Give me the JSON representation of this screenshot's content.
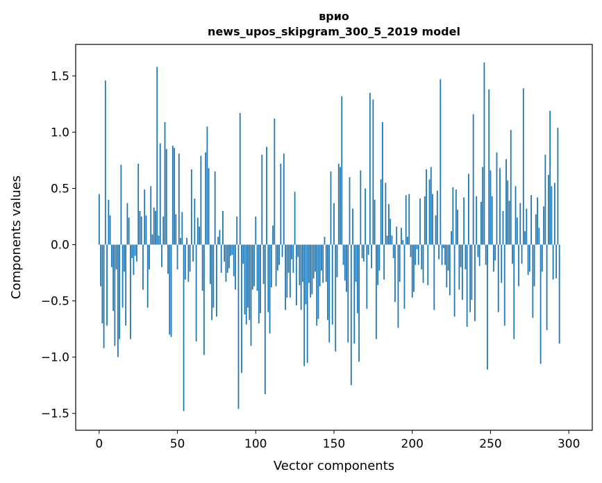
{
  "chart_data": {
    "type": "bar",
    "title": "врио",
    "subtitle": "news_upos_skipgram_300_5_2019 model",
    "xlabel": "Vector components",
    "ylabel": "Components values",
    "xlim": [
      -15,
      315
    ],
    "ylim": [
      -1.65,
      1.78
    ],
    "xticks": [
      0,
      50,
      100,
      150,
      200,
      250,
      300
    ],
    "xtick_labels": [
      "0",
      "50",
      "100",
      "150",
      "200",
      "250",
      "300"
    ],
    "yticks": [
      -1.5,
      -1.0,
      -0.5,
      0.0,
      0.5,
      1.0,
      1.5
    ],
    "ytick_labels": [
      "−1.5",
      "−1.0",
      "−0.5",
      "0.0",
      "0.5",
      "1.0",
      "1.5"
    ],
    "grid": false,
    "bar_color": "#1f77b4",
    "values": [
      0.45,
      -0.37,
      -0.7,
      -0.92,
      1.46,
      -0.72,
      0.4,
      0.26,
      -0.2,
      -0.59,
      -0.9,
      -0.22,
      -1.0,
      -0.84,
      0.71,
      -0.56,
      -0.24,
      -0.72,
      0.37,
      0.24,
      -0.84,
      -0.12,
      -0.27,
      -0.1,
      -0.15,
      0.72,
      0.3,
      0.25,
      -0.4,
      0.49,
      0.26,
      -0.56,
      -0.22,
      0.52,
      0.09,
      0.33,
      0.3,
      1.58,
      0.08,
      0.9,
      -0.2,
      0.25,
      1.09,
      0.85,
      -0.26,
      -0.8,
      -0.82,
      0.88,
      0.86,
      0.27,
      -0.22,
      0.81,
      0.06,
      0.29,
      -1.48,
      -0.31,
      0.06,
      -0.33,
      -0.24,
      0.67,
      -0.15,
      0.41,
      -0.86,
      0.24,
      0.16,
      0.79,
      -0.41,
      -0.98,
      0.82,
      1.05,
      0.68,
      -0.35,
      -0.67,
      -0.56,
      0.65,
      -0.64,
      0.07,
      0.13,
      -0.25,
      0.3,
      -0.15,
      -0.33,
      -0.25,
      -0.21,
      -0.1,
      -0.09,
      -0.28,
      -0.4,
      0.25,
      -1.46,
      1.17,
      -1.14,
      -0.17,
      -0.62,
      -0.71,
      -0.56,
      -0.67,
      -0.9,
      -0.4,
      -0.37,
      0.25,
      -0.41,
      -0.7,
      -0.61,
      0.8,
      -0.35,
      -1.33,
      0.87,
      -0.6,
      -0.79,
      -0.38,
      0.17,
      1.12,
      -0.37,
      -0.23,
      -0.18,
      0.72,
      -0.11,
      0.81,
      -0.58,
      -0.47,
      -0.25,
      -0.47,
      -0.13,
      -0.25,
      0.47,
      -0.54,
      -0.11,
      -0.36,
      -0.58,
      -0.33,
      -1.08,
      -0.53,
      -1.05,
      -0.34,
      -0.47,
      -0.44,
      -0.3,
      -0.24,
      -0.72,
      -0.66,
      -0.37,
      -0.23,
      -0.34,
      0.07,
      -0.33,
      -0.67,
      -0.87,
      0.65,
      -0.71,
      0.37,
      -0.95,
      -0.29,
      0.72,
      0.69,
      1.32,
      -0.18,
      -0.32,
      -0.42,
      -0.87,
      0.6,
      -1.25,
      0.32,
      -0.88,
      -0.33,
      -0.61,
      -1.04,
      0.66,
      -0.12,
      -0.15,
      0.5,
      -0.57,
      -0.09,
      1.35,
      -0.21,
      1.29,
      0.4,
      -0.84,
      -0.36,
      -0.23,
      0.58,
      1.09,
      -0.31,
      0.55,
      0.08,
      0.36,
      0.23,
      0.08,
      -0.12,
      -0.51,
      0.16,
      -0.74,
      -0.33,
      0.15,
      0.04,
      -0.57,
      0.44,
      0.07,
      0.45,
      -0.11,
      -0.47,
      -0.42,
      -0.18,
      -0.04,
      -0.18,
      0.41,
      -0.22,
      -0.34,
      0.43,
      0.67,
      -0.36,
      0.58,
      0.69,
      0.45,
      -0.58,
      0.26,
      0.48,
      -0.13,
      1.47,
      -0.18,
      -0.03,
      -0.18,
      -0.38,
      -0.23,
      -0.45,
      0.12,
      0.51,
      -0.64,
      0.49,
      0.31,
      -0.4,
      -0.2,
      -0.49,
      0.42,
      -0.22,
      -0.73,
      0.63,
      -0.6,
      -0.49,
      1.16,
      -0.68,
      0.43,
      -0.11,
      -0.19,
      0.38,
      0.69,
      1.62,
      -0.18,
      -1.11,
      1.38,
      0.66,
      0.43,
      -0.24,
      -0.14,
      0.82,
      -0.6,
      0.68,
      -0.34,
      0.3,
      -0.72,
      0.76,
      0.57,
      0.39,
      1.02,
      -0.17,
      -0.84,
      0.52,
      0.24,
      -0.37,
      0.37,
      -0.17,
      1.39,
      0.12,
      0.32,
      -0.27,
      -0.24,
      0.44,
      -0.65,
      -0.37,
      0.27,
      0.42,
      0.15,
      -1.06,
      -0.24,
      0.34,
      0.8,
      -0.76,
      0.62,
      1.19,
      0.52,
      -0.31,
      0.55,
      -0.3,
      1.04,
      -0.88,
      0.0,
      0.0,
      0.0,
      0.0,
      0.0
    ]
  }
}
